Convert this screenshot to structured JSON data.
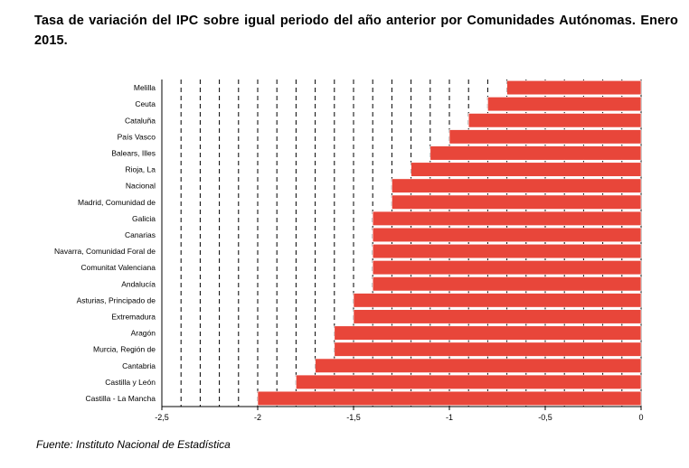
{
  "title": "Tasa de variación del IPC sobre igual periodo del año anterior por Comunidades Autónomas. Enero 2015.",
  "source": "Fuente: Instituto Nacional de Estadística",
  "chart_data": {
    "type": "bar",
    "orientation": "horizontal",
    "title": "Tasa de variación del IPC sobre igual periodo del año anterior por Comunidades Autónomas. Enero 2015.",
    "xlabel": "",
    "ylabel": "",
    "xlim": [
      -2.5,
      0
    ],
    "xticks": [
      -2.5,
      -2,
      -1.5,
      -1,
      -0.5,
      0
    ],
    "xtick_labels": [
      "-2,5",
      "-2",
      "-1,5",
      "-1",
      "-0,5",
      "0"
    ],
    "grid": "vertical dashed every 0.1",
    "bar_color": "#e8463a",
    "categories": [
      "Melilla",
      "Ceuta",
      "Cataluña",
      "País Vasco",
      "Balears, Illes",
      "Rioja, La",
      "Nacional",
      "Madrid, Comunidad de",
      "Galicia",
      "Canarias",
      "Navarra, Comunidad Foral de",
      "Comunitat Valenciana",
      "Andalucía",
      "Asturias, Principado de",
      "Extremadura",
      "Aragón",
      "Murcia, Región de",
      "Cantabria",
      "Castilla y León",
      "Castilla - La Mancha"
    ],
    "values": [
      -0.7,
      -0.8,
      -0.9,
      -1.0,
      -1.1,
      -1.2,
      -1.3,
      -1.3,
      -1.4,
      -1.4,
      -1.4,
      -1.4,
      -1.4,
      -1.5,
      -1.5,
      -1.6,
      -1.6,
      -1.7,
      -1.8,
      -2.0
    ]
  }
}
